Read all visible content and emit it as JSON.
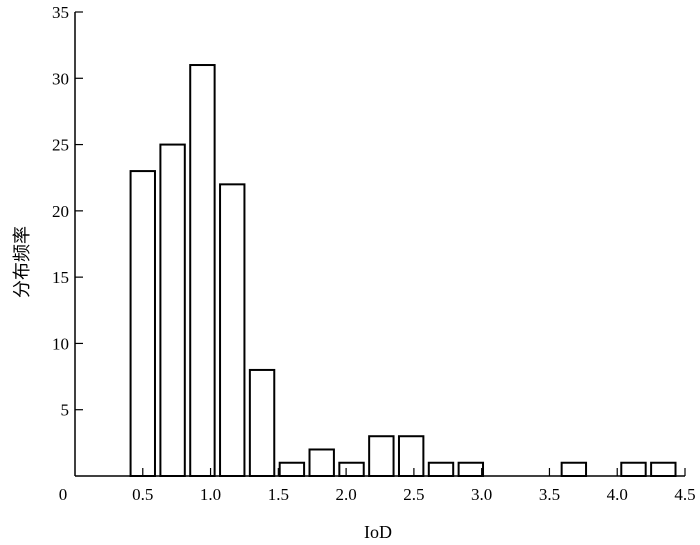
{
  "chart_data": {
    "type": "bar",
    "title": "",
    "xlabel": "IoD",
    "ylabel": "分布频率",
    "xlim": [
      0,
      4.5
    ],
    "ylim": [
      0,
      35
    ],
    "x_ticks": [
      0.5,
      1.0,
      1.5,
      2.0,
      2.5,
      3.0,
      3.5,
      4.0,
      4.5
    ],
    "x_tick_labels": [
      "0.5",
      "1.0",
      "1.5",
      "2.0",
      "2.5",
      "3.0",
      "3.5",
      "4.0",
      "4.5"
    ],
    "y_ticks": [
      5,
      10,
      15,
      20,
      25,
      30,
      35
    ],
    "y_tick_labels": [
      "5",
      "10",
      "15",
      "20",
      "25",
      "30",
      "35"
    ],
    "origin_label": "0",
    "bar_width": 0.18,
    "bars": [
      {
        "x": 0.5,
        "value": 23
      },
      {
        "x": 0.72,
        "value": 25
      },
      {
        "x": 0.94,
        "value": 31
      },
      {
        "x": 1.16,
        "value": 22
      },
      {
        "x": 1.38,
        "value": 8
      },
      {
        "x": 1.6,
        "value": 1
      },
      {
        "x": 1.82,
        "value": 2
      },
      {
        "x": 2.04,
        "value": 1
      },
      {
        "x": 2.26,
        "value": 3
      },
      {
        "x": 2.48,
        "value": 3
      },
      {
        "x": 2.7,
        "value": 1
      },
      {
        "x": 2.92,
        "value": 1
      },
      {
        "x": 3.68,
        "value": 1
      },
      {
        "x": 4.12,
        "value": 1
      },
      {
        "x": 4.34,
        "value": 1
      }
    ],
    "grid": false,
    "legend": "none",
    "colors": {
      "bar_fill": "#ffffff",
      "bar_stroke": "#000000",
      "axis": "#000000"
    }
  }
}
